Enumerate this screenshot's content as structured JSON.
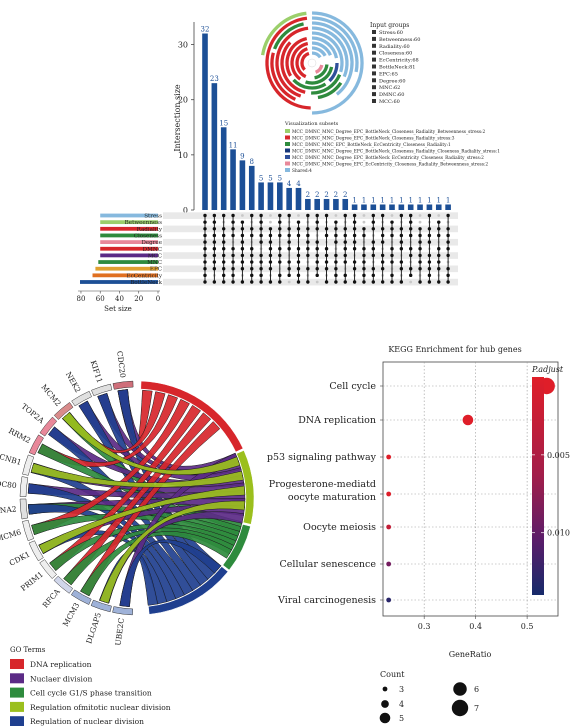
{
  "upset": {
    "ylabel": "Intersection size",
    "set_size_label": "Set size",
    "yticks": [
      0,
      10,
      20,
      30
    ],
    "setsize_ticks": [
      80,
      60,
      40,
      20,
      0
    ],
    "input_groups_title": "Input groups",
    "input_groups": [
      "Stress:60",
      "Betweenness:60",
      "Radiality:60",
      "Closeness:60",
      "EcCentricity:68",
      "BottleNeck:81",
      "EPC:65",
      "Degree:60",
      "MNC:62",
      "DMNC:60",
      "MCC:60"
    ],
    "vis_title": "Visualization subsets",
    "vis_subsets": [
      {
        "label": "MCC_DMNC_MNC_Degree_EPC_BottleNeck_Closeness_Radiality_Betweenness_stress:2",
        "color": "#9bcf6b"
      },
      {
        "label": "MCC_DMNC_MNC_Degree_EPC_BottleNeck_Closeness_Radiality_stress:3",
        "color": "#d7262b"
      },
      {
        "label": "MCC_DMNC_MNC_EPC_BottleNeck_EcCentricity_Closeness_Radiality:1",
        "color": "#2e8b3d"
      },
      {
        "label": "MCC_DMNC_MNC_Degree_EPC_BottleNeck_Closeness_Radiality_Closeness_Radiality_stress:1",
        "color": "#17377a"
      },
      {
        "label": "MCC_DMNC_MNC_Degree_EPC_BottleNeck_EcCentricity_Closeness_Radiality_stress:2",
        "color": "#2f4f9a"
      },
      {
        "label": "MCC_DMNC_MNC_Degree_EPC_EcCentricity_Closeness_Radiality_Betweenness_stress:2",
        "color": "#e8889a"
      },
      {
        "label": "Shared:4",
        "color": "#86b9de"
      }
    ]
  },
  "chord": {
    "genes": [
      "CDC20",
      "KIF11",
      "NEK2",
      "MCM2",
      "TOP2A",
      "RRM2",
      "CCNB1",
      "NDC80",
      "CCNA2",
      "MCM6",
      "CDK1",
      "PRIM1",
      "RFCA",
      "MCM3",
      "DLGAP5",
      "UBE2C"
    ],
    "legend_title": "GO Terms",
    "terms": [
      {
        "label": "DNA replication",
        "color": "#d7262b"
      },
      {
        "label": "Nuclaer division",
        "color": "#5b2a86"
      },
      {
        "label": "Cell cycle G1/S phase transition",
        "color": "#2e8b3d"
      },
      {
        "label": "Regulation ofmitotic nuclear division",
        "color": "#9bbf1d"
      },
      {
        "label": "Regulation of nuclear division",
        "color": "#1f3f8f"
      }
    ]
  },
  "chart_data": [
    {
      "type": "bar",
      "title": "",
      "ylabel": "Intersection size",
      "values": [
        32,
        23,
        15,
        11,
        9,
        8,
        5,
        5,
        5,
        4,
        4,
        2,
        2,
        2,
        2,
        2,
        1,
        1,
        1,
        1,
        1,
        1,
        1,
        1,
        1,
        1,
        1
      ],
      "ylim": [
        0,
        33
      ],
      "sets": [
        "Stress",
        "Betweenness",
        "Radiality",
        "Closeness",
        "Degree",
        "DMNC",
        "MCC",
        "MNC",
        "EPC",
        "EcCentricity",
        "BottleNeck"
      ],
      "set_sizes": [
        60,
        60,
        60,
        60,
        60,
        60,
        60,
        62,
        65,
        68,
        81
      ]
    },
    {
      "type": "scatter",
      "title": "KEGG Enrichment for hub genes",
      "xlabel": "GeneRatio",
      "xticks": [
        0.3,
        0.4,
        0.5
      ],
      "xlim": [
        0.22,
        0.56
      ],
      "categories": [
        "Cell cycle",
        "DNA replication",
        "p53 signaling pathway",
        "Progesterone-mediatd oocyte maturation",
        "Oocyte meiosis",
        "Cellular senescence",
        "Viral carcinogenesis"
      ],
      "x": [
        0.538,
        0.385,
        0.231,
        0.231,
        0.231,
        0.231,
        0.231
      ],
      "count": [
        7,
        5,
        3,
        3,
        3,
        3,
        3
      ],
      "padjust": [
        0.0001,
        0.0001,
        0.0002,
        0.0003,
        0.003,
        0.009,
        0.013
      ],
      "color_title": "P.adjust",
      "color_ticks": [
        0.005,
        0.01
      ],
      "color_range": [
        0.0,
        0.014
      ],
      "size_title": "Count",
      "size_legend": [
        3,
        4,
        5,
        6,
        7
      ]
    }
  ]
}
